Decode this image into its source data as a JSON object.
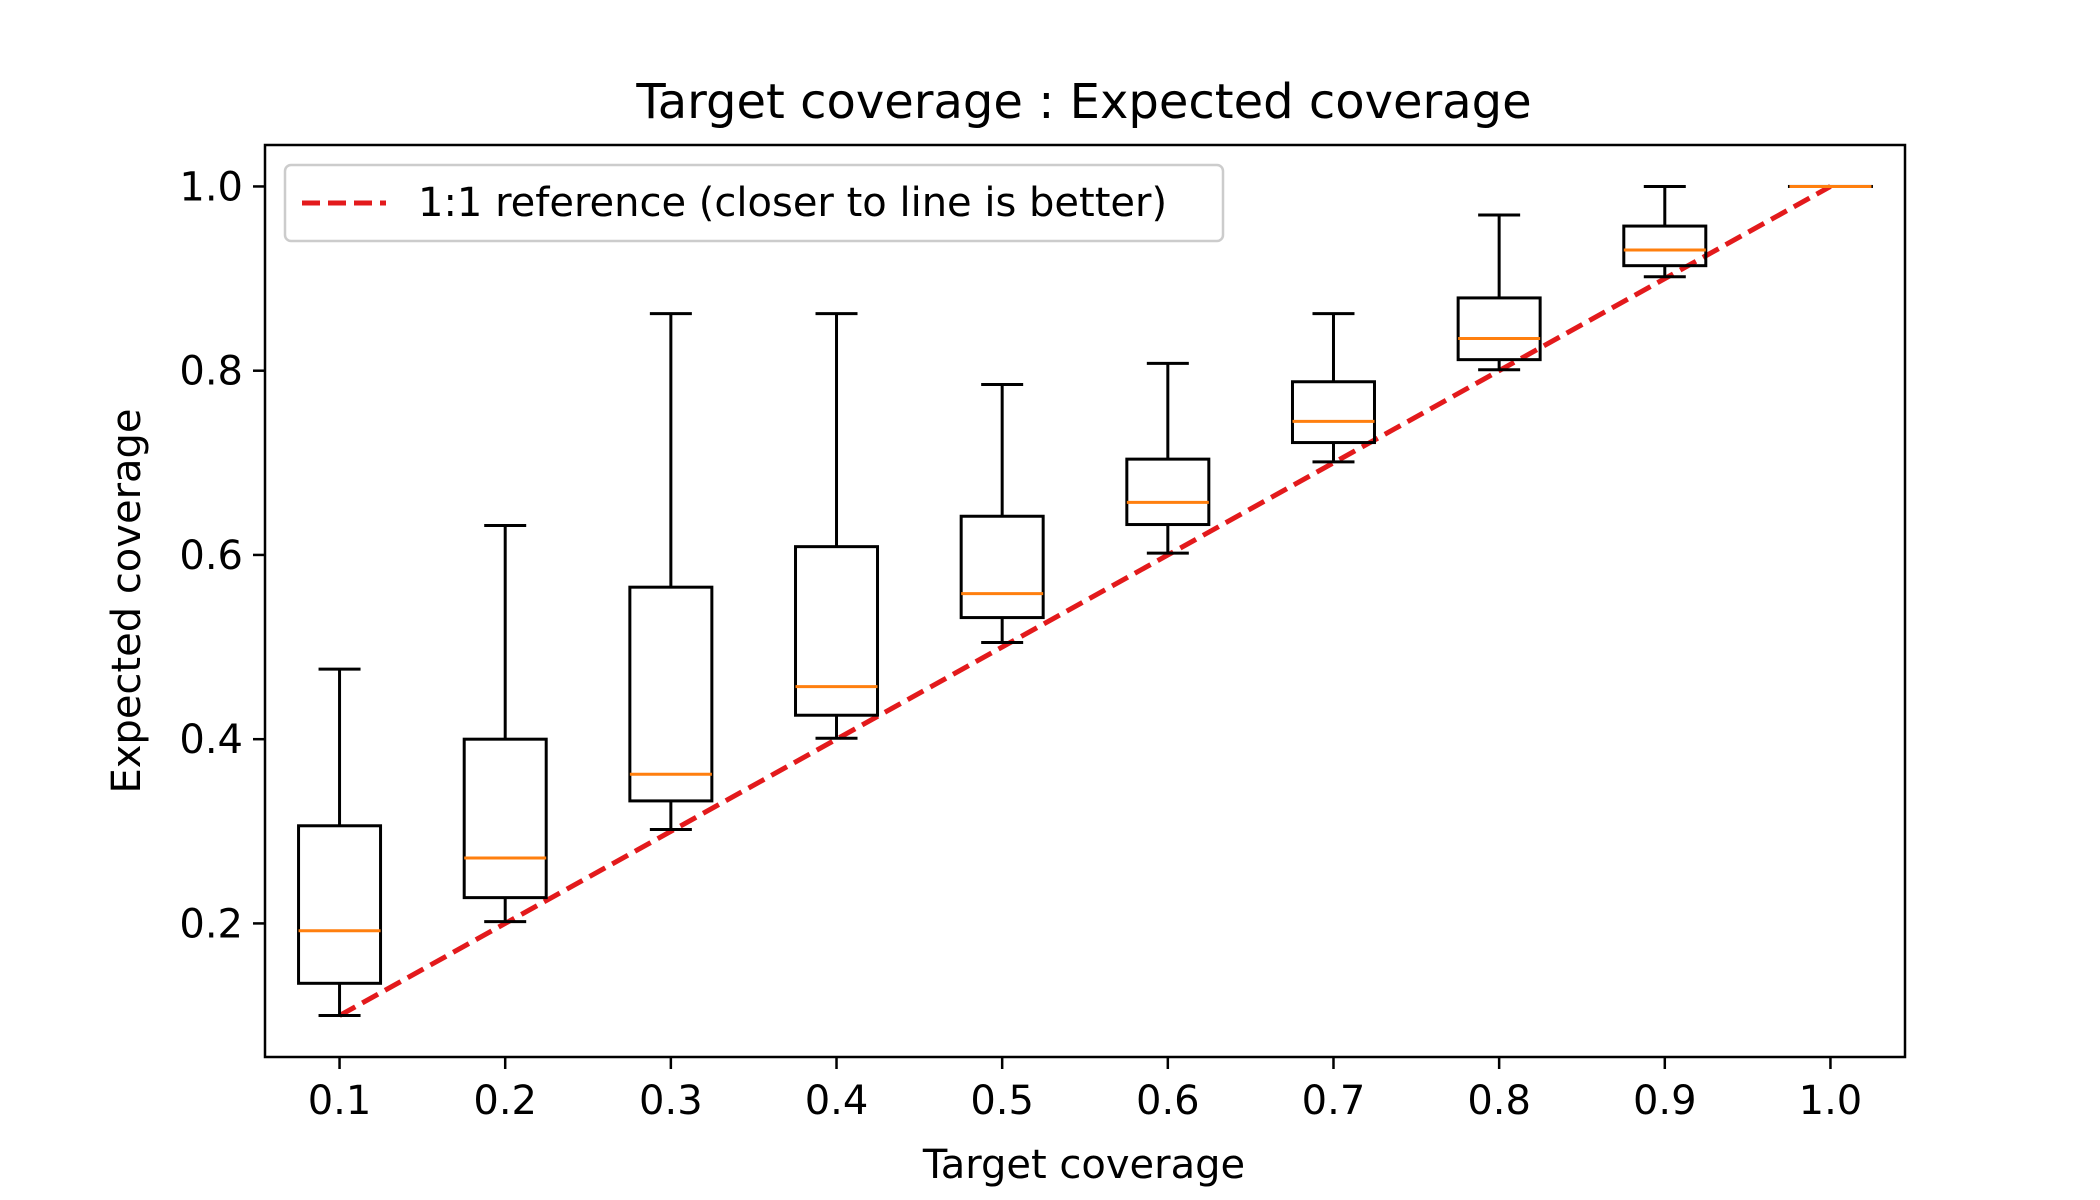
{
  "colors": {
    "box": "#000000",
    "median": "#ff7f0e",
    "reference": "#e31a1c",
    "background": "#ffffff",
    "legend_border": "#cccccc"
  },
  "chart_data": {
    "type": "box",
    "title": "Target coverage : Expected coverage",
    "xlabel": "Target coverage",
    "ylabel": "Expected coverage",
    "categories": [
      "0.1",
      "0.2",
      "0.3",
      "0.4",
      "0.5",
      "0.6",
      "0.7",
      "0.8",
      "0.9",
      "1.0"
    ],
    "yticks": [
      "0.2",
      "0.4",
      "0.6",
      "0.8",
      "1.0"
    ],
    "ylim": [
      0.055,
      1.045
    ],
    "grid": false,
    "legend": {
      "location": "top-left",
      "entries": [
        "1:1 reference (closer to line is better)"
      ]
    },
    "boxes": [
      {
        "x": 0.1,
        "whisker_low": 0.1,
        "q1": 0.135,
        "median": 0.192,
        "q3": 0.306,
        "whisker_high": 0.476
      },
      {
        "x": 0.2,
        "whisker_low": 0.202,
        "q1": 0.228,
        "median": 0.271,
        "q3": 0.4,
        "whisker_high": 0.632
      },
      {
        "x": 0.3,
        "whisker_low": 0.302,
        "q1": 0.333,
        "median": 0.362,
        "q3": 0.565,
        "whisker_high": 0.862
      },
      {
        "x": 0.4,
        "whisker_low": 0.401,
        "q1": 0.426,
        "median": 0.457,
        "q3": 0.609,
        "whisker_high": 0.862
      },
      {
        "x": 0.5,
        "whisker_low": 0.505,
        "q1": 0.532,
        "median": 0.558,
        "q3": 0.642,
        "whisker_high": 0.785
      },
      {
        "x": 0.6,
        "whisker_low": 0.602,
        "q1": 0.633,
        "median": 0.657,
        "q3": 0.704,
        "whisker_high": 0.808
      },
      {
        "x": 0.7,
        "whisker_low": 0.701,
        "q1": 0.722,
        "median": 0.745,
        "q3": 0.788,
        "whisker_high": 0.862
      },
      {
        "x": 0.8,
        "whisker_low": 0.801,
        "q1": 0.812,
        "median": 0.835,
        "q3": 0.879,
        "whisker_high": 0.969
      },
      {
        "x": 0.9,
        "whisker_low": 0.902,
        "q1": 0.914,
        "median": 0.931,
        "q3": 0.957,
        "whisker_high": 1.0
      },
      {
        "x": 1.0,
        "whisker_low": 1.0,
        "q1": 1.0,
        "median": 1.0,
        "q3": 1.0,
        "whisker_high": 1.0
      }
    ],
    "reference_line": {
      "name": "1:1 reference (closer to line is better)",
      "x": [
        0.1,
        1.0
      ],
      "y": [
        0.1,
        1.0
      ],
      "style": "dashed"
    }
  }
}
